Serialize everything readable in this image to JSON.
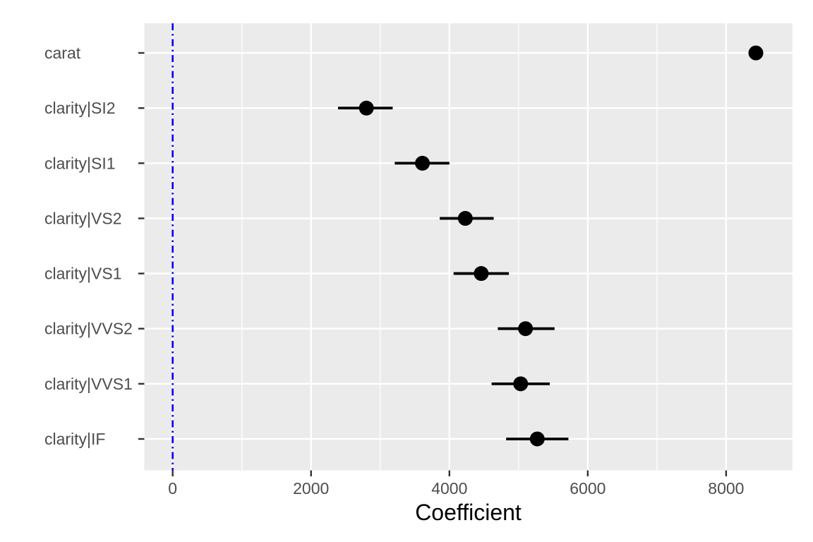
{
  "chart_data": {
    "type": "pointrange",
    "title": "",
    "xlabel": "Coefficient",
    "ylabel": "",
    "xlim": [
      -410,
      8960
    ],
    "x_major_ticks": [
      0,
      2000,
      4000,
      6000,
      8000
    ],
    "x_tick_labels": [
      "0",
      "2000",
      "4000",
      "6000",
      "8000"
    ],
    "x_minor_ticks": [
      1000,
      3000,
      5000,
      7000
    ],
    "grid": true,
    "legend": "none",
    "reference_line": {
      "x": 0,
      "color": "#0000FF",
      "linetype": "dotdash"
    },
    "categories": [
      "carat",
      "clarity|SI2",
      "clarity|SI1",
      "clarity|VS2",
      "clarity|VS1",
      "clarity|VVS2",
      "clarity|VVS1",
      "clarity|IF"
    ],
    "series": [
      {
        "name": "estimate",
        "points": [
          {
            "term": "carat",
            "estimate": 8430,
            "low": 8360,
            "high": 8490
          },
          {
            "term": "clarity|SI2",
            "estimate": 2800,
            "low": 2390,
            "high": 3180
          },
          {
            "term": "clarity|SI1",
            "estimate": 3610,
            "low": 3210,
            "high": 4000
          },
          {
            "term": "clarity|VS2",
            "estimate": 4230,
            "low": 3860,
            "high": 4640
          },
          {
            "term": "clarity|VS1",
            "estimate": 4460,
            "low": 4060,
            "high": 4860
          },
          {
            "term": "clarity|VVS2",
            "estimate": 5100,
            "low": 4700,
            "high": 5520
          },
          {
            "term": "clarity|VVS1",
            "estimate": 5030,
            "low": 4610,
            "high": 5450
          },
          {
            "term": "clarity|IF",
            "estimate": 5270,
            "low": 4820,
            "high": 5720
          }
        ]
      }
    ],
    "colors": {
      "panel_bg": "#EBEBEB",
      "grid": "#FFFFFF",
      "point": "#000000",
      "axis_text": "#4D4D4D",
      "axis_title": "#000000",
      "tick_mark": "#333333",
      "reference": "#0000FF"
    }
  }
}
